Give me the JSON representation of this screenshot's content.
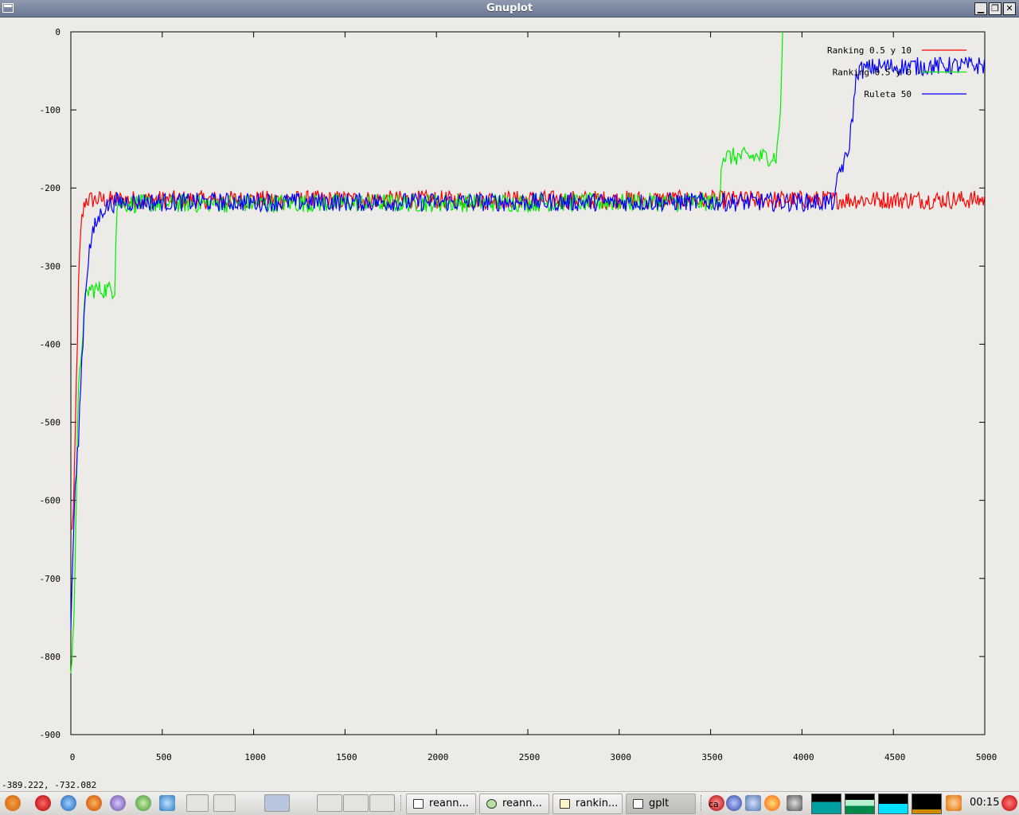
{
  "window": {
    "title": "Gnuplot",
    "buttons": {
      "minimize": "▁",
      "maximize": "❐",
      "close": "✕"
    }
  },
  "status": {
    "coords": "-389.222, -732.082"
  },
  "chart_data": {
    "type": "line",
    "xlim": [
      0,
      5000
    ],
    "ylim": [
      -900,
      0
    ],
    "xticks": [
      0,
      500,
      1000,
      1500,
      2000,
      2500,
      3000,
      3500,
      4000,
      4500,
      5000
    ],
    "yticks": [
      0,
      -100,
      -200,
      -300,
      -400,
      -500,
      -600,
      -700,
      -800,
      -900
    ],
    "legend_position": "top-right",
    "series": [
      {
        "name": "Ranking 0.5 y 10",
        "color": "#ff0000",
        "noise": 12,
        "points": [
          [
            0,
            -640
          ],
          [
            15,
            -620
          ],
          [
            30,
            -450
          ],
          [
            45,
            -300
          ],
          [
            60,
            -240
          ],
          [
            80,
            -215
          ],
          [
            150,
            -215
          ],
          [
            5000,
            -215
          ]
        ]
      },
      {
        "name": "Ranking 0.5 y 0",
        "color": "#00ee00",
        "noise": 12,
        "points": [
          [
            0,
            -830
          ],
          [
            20,
            -720
          ],
          [
            40,
            -470
          ],
          [
            60,
            -400
          ],
          [
            80,
            -340
          ],
          [
            100,
            -330
          ],
          [
            240,
            -330
          ],
          [
            250,
            -220
          ],
          [
            3550,
            -218
          ],
          [
            3560,
            -160
          ],
          [
            3860,
            -160
          ],
          [
            3880,
            -110
          ],
          [
            3895,
            0
          ]
        ]
      },
      {
        "name": "Ruleta 50",
        "color": "#0000ff",
        "noise": 12,
        "points": [
          [
            0,
            -760
          ],
          [
            20,
            -600
          ],
          [
            40,
            -530
          ],
          [
            60,
            -420
          ],
          [
            80,
            -330
          ],
          [
            100,
            -280
          ],
          [
            130,
            -250
          ],
          [
            180,
            -225
          ],
          [
            250,
            -218
          ],
          [
            4180,
            -218
          ],
          [
            4200,
            -180
          ],
          [
            4250,
            -160
          ],
          [
            4280,
            -100
          ],
          [
            4300,
            -50
          ],
          [
            4400,
            -45
          ],
          [
            5000,
            -43
          ]
        ]
      }
    ]
  },
  "taskbar": {
    "tasks": [
      {
        "label": "reann..."
      },
      {
        "label": "reann..."
      },
      {
        "label": "rankin..."
      },
      {
        "label": "gplt"
      }
    ],
    "tray_text": "ca",
    "clock": "00:15"
  }
}
